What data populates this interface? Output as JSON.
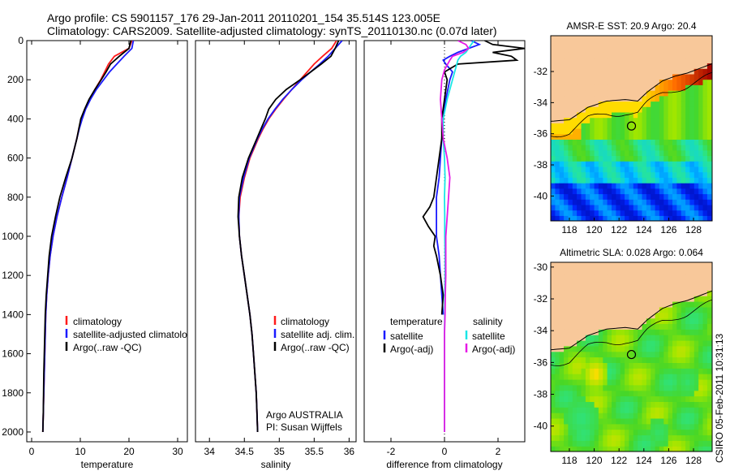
{
  "header": {
    "line1": "Argo profile: CS 5901157_176 29-Jan-2011 20110201_154 35.514S 123.005E",
    "line2": "Climatology: CARS2009. Satellite-adjusted climatology: synTS_20110130.nc (0.07d later)"
  },
  "footer_stamp": "CSIRO 05-Feb-2011 10:31:13",
  "colors": {
    "red": "#ff1a1a",
    "blue": "#1a1aff",
    "black": "#000000",
    "cyan": "#19e6e6",
    "magenta": "#e619e6",
    "land": "#f8c89a"
  },
  "chart_data": [
    {
      "type": "line",
      "name": "temperature-profile",
      "xlabel": "temperature",
      "ylabel": "",
      "xlim": [
        -1,
        32
      ],
      "ylim": [
        2050,
        0
      ],
      "xticks": [
        0,
        10,
        20,
        30
      ],
      "yticks": [
        0,
        200,
        400,
        600,
        800,
        1000,
        1200,
        1400,
        1600,
        1800,
        2000
      ],
      "depth": [
        0,
        40,
        80,
        120,
        160,
        200,
        250,
        300,
        350,
        400,
        450,
        500,
        600,
        700,
        800,
        900,
        1000,
        1100,
        1200,
        1300,
        1400,
        1500,
        1600,
        1700,
        1800,
        1900,
        2000
      ],
      "series": [
        {
          "name": "climatology",
          "color": "red",
          "values": [
            20.6,
            20.0,
            17.0,
            15.8,
            15.0,
            14.2,
            13.0,
            12.0,
            11.0,
            10.2,
            9.7,
            9.3,
            8.3,
            7.3,
            6.2,
            5.2,
            4.4,
            3.8,
            3.4,
            3.1,
            2.9,
            2.8,
            2.7,
            2.6,
            2.5,
            2.4,
            2.3
          ]
        },
        {
          "name": "satellite-adjusted climatology",
          "color": "blue",
          "values": [
            20.9,
            20.6,
            19.0,
            17.5,
            16.0,
            14.8,
            13.3,
            12.1,
            11.1,
            10.4,
            9.8,
            9.3,
            8.3,
            7.3,
            6.2,
            5.2,
            4.4,
            3.8,
            3.4,
            3.1,
            2.9,
            2.8,
            2.7,
            2.6,
            2.5,
            2.4,
            2.3
          ]
        },
        {
          "name": "Argo(..raw -QC)",
          "color": "black",
          "values": [
            20.4,
            20.0,
            18.0,
            16.2,
            15.3,
            14.3,
            13.0,
            11.8,
            10.9,
            10.1,
            9.7,
            9.3,
            8.3,
            7.0,
            5.8,
            4.9,
            4.1,
            3.6,
            3.3,
            3.0,
            2.8,
            2.7,
            2.6,
            2.5,
            2.45,
            2.4,
            2.3
          ]
        }
      ],
      "legend": [
        "climatology",
        "satellite-adjusted climatology",
        "Argo(..raw -QC)"
      ],
      "legend_position": "lower-right"
    },
    {
      "type": "line",
      "name": "salinity-profile",
      "xlabel": "salinity",
      "ylabel": "",
      "xlim": [
        33.8,
        36.1
      ],
      "ylim": [
        2050,
        0
      ],
      "xticks": [
        34,
        34.5,
        35,
        35.5,
        36
      ],
      "depth": [
        0,
        40,
        80,
        120,
        160,
        200,
        250,
        300,
        350,
        400,
        450,
        500,
        600,
        700,
        800,
        900,
        1000,
        1100,
        1200,
        1300,
        1400,
        1500,
        1600,
        1700,
        1800,
        1900,
        2000
      ],
      "series": [
        {
          "name": "climatology",
          "color": "red",
          "values": [
            35.82,
            35.75,
            35.62,
            35.5,
            35.4,
            35.3,
            35.18,
            35.06,
            34.95,
            34.85,
            34.77,
            34.7,
            34.58,
            34.5,
            34.44,
            34.42,
            34.43,
            34.46,
            34.5,
            34.54,
            34.58,
            34.61,
            34.63,
            34.65,
            34.67,
            34.68,
            34.69
          ]
        },
        {
          "name": "satellite adj. clim.",
          "color": "blue",
          "values": [
            35.9,
            35.8,
            35.7,
            35.58,
            35.45,
            35.32,
            35.18,
            35.05,
            34.94,
            34.84,
            34.76,
            34.69,
            34.57,
            34.49,
            34.43,
            34.42,
            34.43,
            34.46,
            34.5,
            34.54,
            34.58,
            34.61,
            34.63,
            34.65,
            34.67,
            34.68,
            34.69
          ]
        },
        {
          "name": "Argo(..raw -QC)",
          "color": "black",
          "values": [
            35.85,
            35.8,
            35.74,
            35.6,
            35.45,
            35.3,
            35.1,
            34.95,
            34.85,
            34.8,
            34.74,
            34.68,
            34.56,
            34.47,
            34.42,
            34.41,
            34.43,
            34.46,
            34.5,
            34.54,
            34.58,
            34.61,
            34.63,
            34.65,
            34.67,
            34.68,
            34.69
          ]
        }
      ],
      "legend": [
        "climatology",
        "satellite adj. clim.",
        "Argo(..raw -QC)"
      ],
      "legend_position": "lower-right",
      "annotations": [
        "Argo AUSTRALIA",
        "PI: Susan Wijffels"
      ]
    },
    {
      "type": "line",
      "name": "difference-profile",
      "xlabel": "difference from climatology",
      "ylabel": "",
      "xlim": [
        -3,
        3
      ],
      "ylim": [
        2050,
        0
      ],
      "xticks": [
        -2,
        0,
        2
      ],
      "zero_line": "dotted",
      "depth_temp": [
        0,
        20,
        40,
        60,
        80,
        100,
        120,
        160,
        200,
        300,
        400,
        500,
        600,
        700,
        800,
        850,
        900,
        950,
        1000,
        1050,
        1100,
        1200,
        1300,
        1400
      ],
      "temp_series": [
        {
          "name": "satellite",
          "color": "blue",
          "values": [
            1.0,
            1.3,
            0.9,
            0.5,
            0.2,
            -0.05,
            0.05,
            0.3,
            0.2,
            0.05,
            -0.05,
            -0.1,
            -0.15,
            -0.2,
            -0.3,
            -0.3,
            -0.3,
            -0.3,
            -0.3,
            -0.25,
            -0.2,
            -0.15,
            -0.1,
            -0.05
          ]
        },
        {
          "name": "Argo(-adj)",
          "color": "black",
          "values": [
            1.5,
            1.8,
            3.0,
            1.8,
            2.5,
            2.7,
            0.5,
            0.0,
            0.1,
            0.0,
            -0.1,
            -0.1,
            -0.2,
            -0.3,
            -0.4,
            -0.55,
            -0.8,
            -0.6,
            -0.35,
            -0.4,
            -0.3,
            -0.15,
            -0.05,
            -0.1
          ]
        }
      ],
      "depth_sal": [
        0,
        20,
        40,
        60,
        80,
        100,
        150,
        200,
        300,
        400,
        500,
        600,
        700,
        800,
        900,
        1000,
        1100,
        1200,
        1300,
        1400,
        1500,
        1600,
        1700,
        1800,
        1900,
        2000
      ],
      "sal_series": [
        {
          "name": "satellite",
          "color": "cyan",
          "values": [
            1.1,
            1.0,
            0.9,
            0.8,
            0.6,
            0.5,
            0.4,
            0.3,
            0.1,
            -0.05,
            -0.05,
            0.0,
            0.02,
            0.0,
            0.01,
            0.01,
            0.02,
            0.02,
            0.01,
            0.01,
            0.0,
            0.0,
            0.0,
            0.0,
            0.0,
            0.0
          ]
        },
        {
          "name": "Argo(-adj)",
          "color": "magenta",
          "values": [
            0.5,
            0.8,
            0.9,
            0.7,
            0.3,
            0.2,
            0.0,
            -0.1,
            -0.15,
            -0.1,
            -0.05,
            0.1,
            0.2,
            0.15,
            0.1,
            0.05,
            0.05,
            0.05,
            0.03,
            0.02,
            0.0,
            0.0,
            0.0,
            0.0,
            0.0,
            0.0
          ]
        }
      ],
      "legend_left_title": "temperature",
      "legend_right_title": "salinity",
      "legend_left": [
        "satellite",
        "Argo(-adj)"
      ],
      "legend_right": [
        "satellite",
        "Argo(-adj)"
      ],
      "legend_position": "lower-right"
    },
    {
      "type": "heatmap",
      "name": "sst-map",
      "title": "AMSR-E SST: 20.9 Argo: 20.4",
      "xlim": [
        116.5,
        129.5
      ],
      "ylim": [
        -41.6,
        -29.7
      ],
      "xticks": [
        118,
        120,
        122,
        124,
        126,
        128
      ],
      "yticks": [
        -32,
        -34,
        -36,
        -38,
        -40
      ],
      "marker": {
        "lon": 123.0,
        "lat": -35.5
      }
    },
    {
      "type": "heatmap",
      "name": "sla-map",
      "title": "Altimetric SLA: 0.028 Argo: 0.064",
      "xlim": [
        116.5,
        129.5
      ],
      "ylim": [
        -41.6,
        -29.7
      ],
      "xticks": [
        118,
        120,
        122,
        124,
        126,
        128
      ],
      "yticks": [
        -30,
        -32,
        -34,
        -36,
        -38,
        -40
      ],
      "marker": {
        "lon": 123.0,
        "lat": -35.5
      }
    }
  ]
}
